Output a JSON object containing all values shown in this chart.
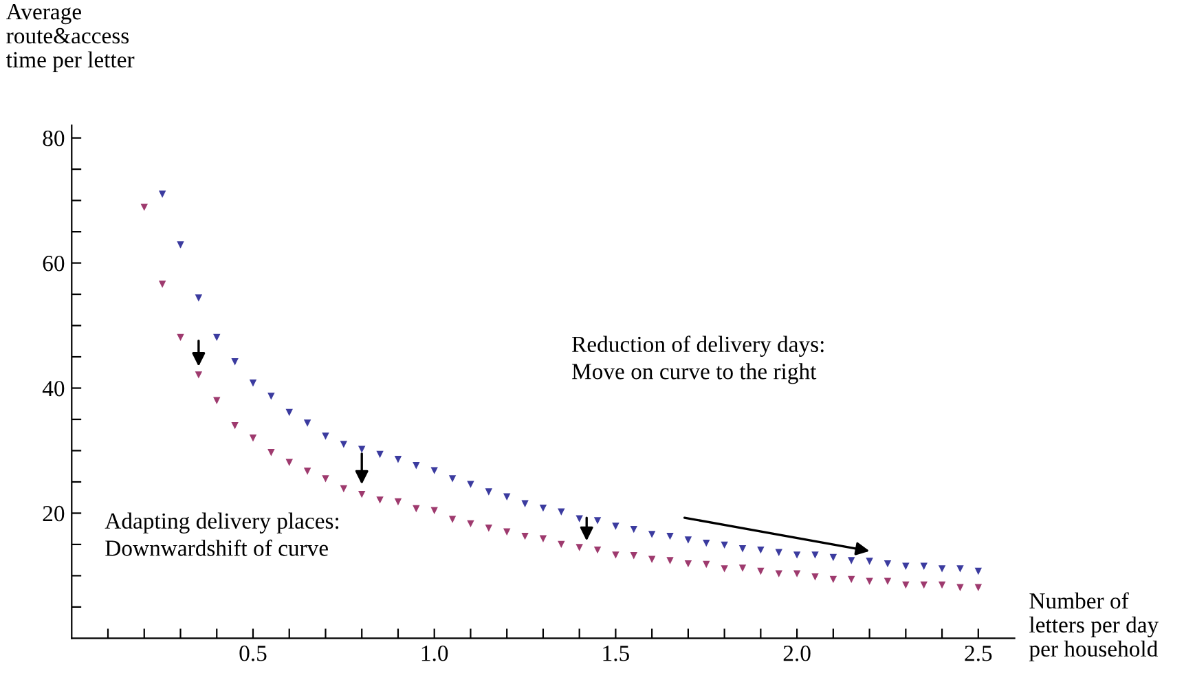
{
  "chart_data": {
    "type": "scatter",
    "xlabel": "Number of\nletters per day\nper household",
    "ylabel": "Average\nroute&access\ntime per letter",
    "annotations": [
      "Adapting delivery places:\nDownwardshift of curve",
      "Reduction of delivery days:\nMove on curve to the right"
    ],
    "series": [
      {
        "color": "#3b3b9f",
        "x": [
          0.25,
          0.3,
          0.35,
          0.4,
          0.45,
          0.5,
          0.55,
          0.6,
          0.65,
          0.7,
          0.75,
          0.8,
          0.85,
          0.9,
          0.95,
          1.0,
          1.05,
          1.1,
          1.15,
          1.2,
          1.25,
          1.3,
          1.35,
          1.4,
          1.45,
          1.5,
          1.55,
          1.6,
          1.65,
          1.7,
          1.75,
          1.8,
          1.85,
          1.9,
          1.95,
          2.0,
          2.05,
          2.1,
          2.15,
          2.2,
          2.25,
          2.3,
          2.35,
          2.4,
          2.45,
          2.5
        ],
        "values": [
          71.0,
          62.9,
          54.4,
          48.1,
          44.2,
          40.8,
          38.7,
          36.1,
          34.4,
          32.3,
          31.0,
          30.2,
          29.4,
          28.6,
          27.6,
          26.8,
          25.5,
          24.6,
          23.4,
          22.6,
          21.5,
          20.8,
          20.2,
          19.1,
          18.8,
          17.9,
          17.4,
          16.6,
          16.3,
          15.7,
          15.2,
          14.9,
          14.3,
          14.1,
          13.7,
          13.3,
          13.3,
          12.9,
          12.4,
          12.3,
          11.9,
          11.5,
          11.5,
          11.1,
          11.1,
          10.7
        ]
      },
      {
        "color": "#9e3a6e",
        "x": [
          0.2,
          0.25,
          0.3,
          0.35,
          0.4,
          0.45,
          0.5,
          0.55,
          0.6,
          0.65,
          0.7,
          0.75,
          0.8,
          0.85,
          0.9,
          0.95,
          1.0,
          1.05,
          1.1,
          1.15,
          1.2,
          1.25,
          1.3,
          1.35,
          1.4,
          1.45,
          1.5,
          1.55,
          1.6,
          1.65,
          1.7,
          1.75,
          1.8,
          1.85,
          1.9,
          1.95,
          2.0,
          2.05,
          2.1,
          2.15,
          2.2,
          2.25,
          2.3,
          2.35,
          2.4,
          2.45,
          2.5
        ],
        "values": [
          68.9,
          56.6,
          48.1,
          42.1,
          38.0,
          34.0,
          32.0,
          29.7,
          28.1,
          26.7,
          25.5,
          23.9,
          23.0,
          22.1,
          21.8,
          20.7,
          20.4,
          19.0,
          18.3,
          17.6,
          17.0,
          16.3,
          15.9,
          15.0,
          14.5,
          14.1,
          13.3,
          13.2,
          12.6,
          12.4,
          11.9,
          11.8,
          11.1,
          11.2,
          10.7,
          10.3,
          10.3,
          9.8,
          9.4,
          9.4,
          9.1,
          9.1,
          8.5,
          8.5,
          8.5,
          8.1,
          8.1
        ]
      }
    ],
    "xlim": [
      0,
      2.6
    ],
    "ylim": [
      0,
      82
    ],
    "xticks": [
      {
        "value": 0.1,
        "label": null
      },
      {
        "value": 0.2,
        "label": null
      },
      {
        "value": 0.3,
        "label": null
      },
      {
        "value": 0.4,
        "label": null
      },
      {
        "value": 0.5,
        "label": "0.5"
      },
      {
        "value": 0.6,
        "label": null
      },
      {
        "value": 0.7,
        "label": null
      },
      {
        "value": 0.8,
        "label": null
      },
      {
        "value": 0.9,
        "label": null
      },
      {
        "value": 1,
        "label": "1.0"
      },
      {
        "value": 1.1,
        "label": null
      },
      {
        "value": 1.2,
        "label": null
      },
      {
        "value": 1.3,
        "label": null
      },
      {
        "value": 1.4,
        "label": null
      },
      {
        "value": 1.5,
        "label": "1.5"
      },
      {
        "value": 1.6,
        "label": null
      },
      {
        "value": 1.7,
        "label": null
      },
      {
        "value": 1.8,
        "label": null
      },
      {
        "value": 1.9,
        "label": null
      },
      {
        "value": 2,
        "label": "2.0"
      },
      {
        "value": 2.1,
        "label": null
      },
      {
        "value": 2.2,
        "label": null
      },
      {
        "value": 2.3,
        "label": null
      },
      {
        "value": 2.4,
        "label": null
      },
      {
        "value": 2.5,
        "label": "2.5"
      }
    ],
    "yticks": [
      {
        "value": 5,
        "label": null
      },
      {
        "value": 10,
        "label": null
      },
      {
        "value": 15,
        "label": null
      },
      20,
      {
        "value": 25,
        "label": null
      },
      {
        "value": 30,
        "label": null
      },
      {
        "value": 35,
        "label": null
      },
      40,
      {
        "value": 45,
        "label": null
      },
      {
        "value": 50,
        "label": null
      },
      {
        "value": 55,
        "label": null
      },
      60,
      {
        "value": 65,
        "label": null
      },
      {
        "value": 70,
        "label": null
      },
      {
        "value": 75,
        "label": null
      },
      80
    ],
    "marker": "triangle",
    "grid": false,
    "legend": false
  }
}
